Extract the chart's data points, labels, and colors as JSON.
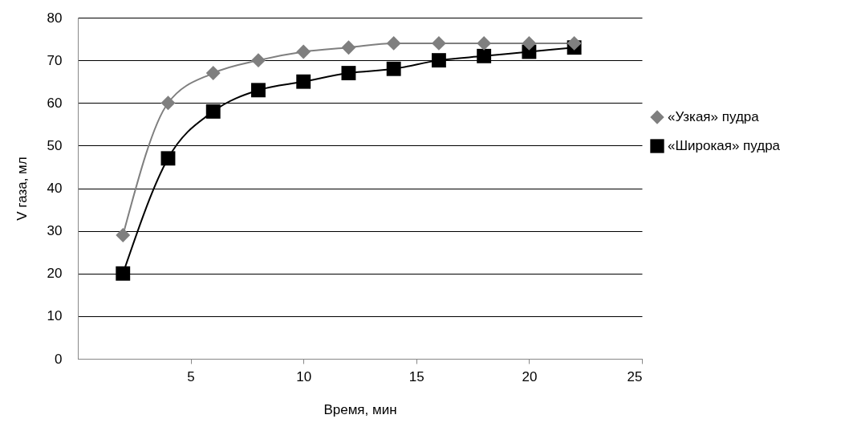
{
  "chart_data": {
    "type": "line",
    "xlabel": "Время, мин",
    "ylabel": "V газа, мл",
    "x": [
      2,
      4,
      6,
      8,
      10,
      12,
      14,
      16,
      18,
      20,
      22
    ],
    "series": [
      {
        "name": "«Узкая» пудра",
        "color": "#7f7f7f",
        "marker": "diamond",
        "values": [
          29,
          60,
          67,
          70,
          72,
          73,
          74,
          74,
          74,
          74,
          74
        ]
      },
      {
        "name": "«Широкая» пудра",
        "color": "#000000",
        "marker": "square",
        "values": [
          20,
          47,
          58,
          63,
          65,
          67,
          68,
          70,
          71,
          72,
          73
        ]
      }
    ],
    "xlim": [
      0,
      25
    ],
    "xticks": [
      5,
      10,
      15,
      20,
      25
    ],
    "ylim": [
      0,
      80
    ],
    "yticks": [
      0,
      10,
      20,
      30,
      40,
      50,
      60,
      70,
      80
    ],
    "grid": "y",
    "legend": "right",
    "line_style": "solid"
  }
}
